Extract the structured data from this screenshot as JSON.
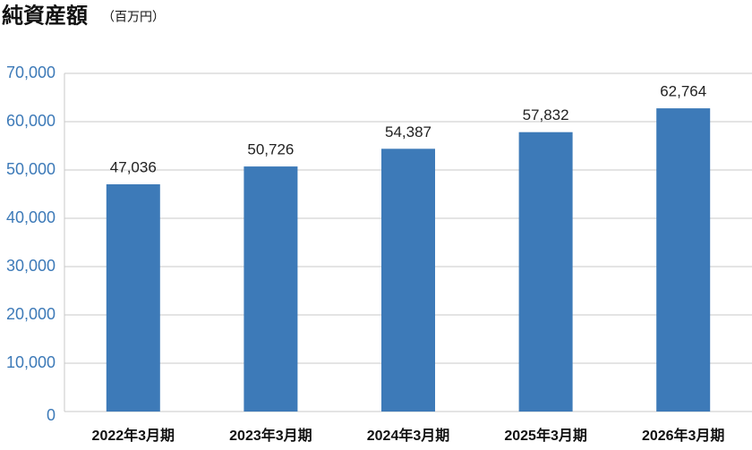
{
  "chart_data": {
    "type": "bar",
    "title": "純資産額",
    "unit": "（百万円）",
    "categories": [
      "2022年3月期",
      "2023年3月期",
      "2024年3月期",
      "2025年3月期",
      "2026年3月期"
    ],
    "values": [
      47036,
      50726,
      54387,
      57832,
      62764
    ],
    "value_labels": [
      "47,036",
      "50,726",
      "54,387",
      "57,832",
      "62,764"
    ],
    "color": "#3d7ab8",
    "ylim": [
      0,
      70000
    ],
    "yticks": [
      0,
      {
        "value": 10000,
        "label": "10,000"
      },
      {
        "value": 20000,
        "label": "20,000"
      },
      {
        "value": 30000,
        "label": "30,000"
      },
      {
        "value": 40000,
        "label": "40,000"
      },
      {
        "value": 50000,
        "label": "50,000"
      },
      {
        "value": 60000,
        "label": "60,000"
      },
      {
        "value": 70000,
        "label": "70,000"
      }
    ],
    "grid": true
  }
}
